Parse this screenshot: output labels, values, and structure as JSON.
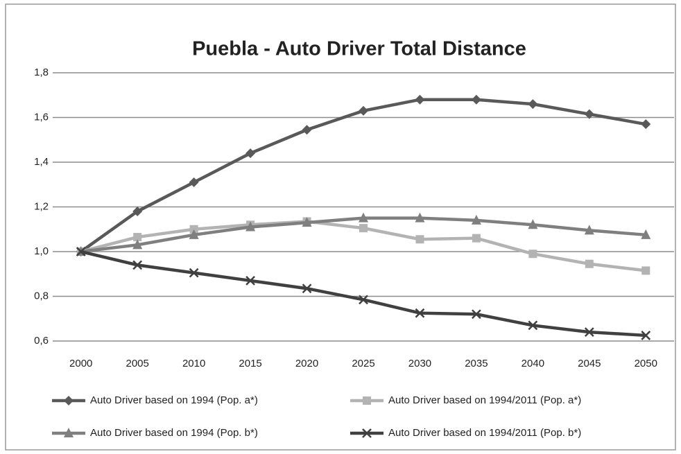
{
  "chart_data": {
    "type": "line",
    "title": "Puebla - Auto Driver Total Distance",
    "categories": [
      "2000",
      "2005",
      "2010",
      "2015",
      "2020",
      "2025",
      "2030",
      "2035",
      "2040",
      "2045",
      "2050"
    ],
    "series": [
      {
        "name": "Auto Driver based on 1994  (Pop. a*)",
        "color": "#595959",
        "marker": "diamond",
        "values": [
          1.0,
          1.18,
          1.31,
          1.44,
          1.545,
          1.63,
          1.68,
          1.68,
          1.66,
          1.615,
          1.57
        ]
      },
      {
        "name": "Auto Driver based on 1994/2011  (Pop. a*)",
        "color": "#b3b3b3",
        "marker": "square",
        "values": [
          1.0,
          1.065,
          1.1,
          1.12,
          1.135,
          1.105,
          1.055,
          1.06,
          0.99,
          0.945,
          0.915
        ]
      },
      {
        "name": "Auto Driver based on 1994  (Pop. b*)",
        "color": "#7f7f7f",
        "marker": "triangle",
        "values": [
          1.0,
          1.03,
          1.075,
          1.11,
          1.13,
          1.15,
          1.15,
          1.14,
          1.12,
          1.095,
          1.075
        ]
      },
      {
        "name": "Auto Driver based on 1994/2011  (Pop. b*)",
        "color": "#404040",
        "marker": "x",
        "values": [
          1.0,
          0.94,
          0.905,
          0.87,
          0.835,
          0.785,
          0.725,
          0.72,
          0.67,
          0.64,
          0.625
        ]
      }
    ],
    "ylim": [
      0.6,
      1.8
    ],
    "yticks": [
      {
        "value": 0.6,
        "label": "0,6"
      },
      {
        "value": 0.8,
        "label": "0,8"
      },
      {
        "value": 1.0,
        "label": "1,0"
      },
      {
        "value": 1.2,
        "label": "1,2"
      },
      {
        "value": 1.4,
        "label": "1,4"
      },
      {
        "value": 1.6,
        "label": "1,6"
      },
      {
        "value": 1.8,
        "label": "1,8"
      }
    ],
    "grid": true
  }
}
